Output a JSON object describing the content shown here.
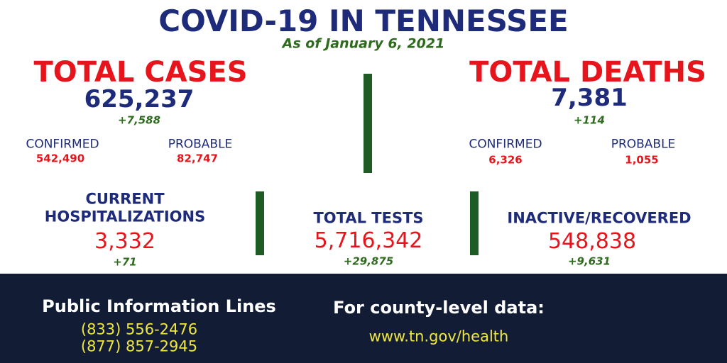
{
  "title": "COVID-19 IN TENNESSEE",
  "subtitle": "As of January 6, 2021",
  "total_cases": {
    "label": "TOTAL CASES",
    "value": "625,237",
    "change": "+7,588",
    "confirmed": {
      "label": "CONFIRMED",
      "value": "542,490"
    },
    "probable": {
      "label": "PROBABLE",
      "value": "82,747"
    }
  },
  "total_deaths": {
    "label": "TOTAL DEATHS",
    "value": "7,381",
    "change": "+114",
    "confirmed": {
      "label": "CONFIRMED",
      "value": "6,326"
    },
    "probable": {
      "label": "PROBABLE",
      "value": "1,055"
    }
  },
  "hospitalizations": {
    "label": [
      "CURRENT",
      "HOSPITALIZATIONS"
    ],
    "value": "3,332",
    "change": "+71"
  },
  "tests": {
    "label": "TOTAL TESTS",
    "value": "5,716,342",
    "change": "+29,875"
  },
  "recovered": {
    "label": "INACTIVE/RECOVERED",
    "value": "548,838",
    "change": "+9,631"
  },
  "footer": {
    "info_title": "Public Information Lines",
    "phones": [
      "(833) 556-2476",
      "(877) 857-2945"
    ],
    "county_title": "For county-level data:",
    "url": "www.tn.gov/health"
  }
}
